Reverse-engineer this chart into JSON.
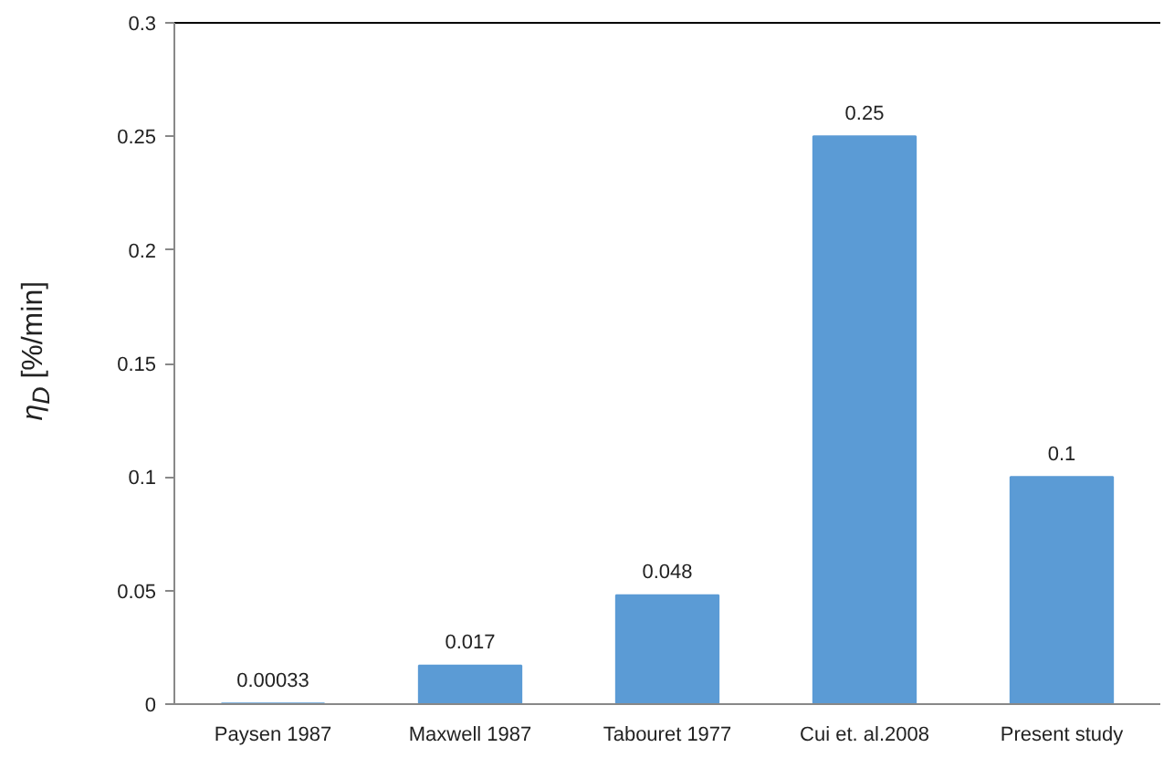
{
  "chart_data": {
    "type": "bar",
    "ylabel": "η$_{D}$ [%/min]",
    "categories": [
      "Paysen 1987",
      "Maxwell 1987",
      "Tabouret 1977",
      "Cui et. al.2008",
      "Present study"
    ],
    "values": [
      0.00033,
      0.017,
      0.048,
      0.25,
      0.1
    ],
    "color": "#5b9bd5",
    "ylim": [
      0,
      0.3
    ],
    "yticks": [
      0,
      0.05,
      0.1,
      0.15,
      0.2,
      0.25,
      0.3
    ],
    "data_labels": true,
    "grid": false
  }
}
